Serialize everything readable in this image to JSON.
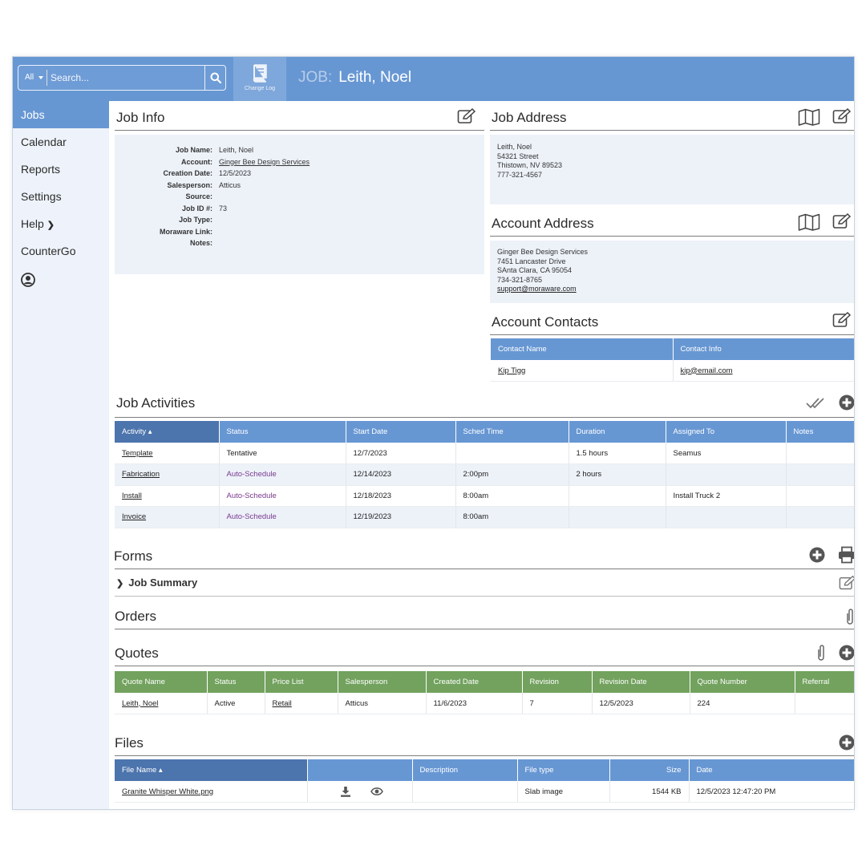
{
  "header": {
    "search_scope": "All",
    "search_placeholder": "Search...",
    "change_log_label": "Change Log",
    "title_prefix": "JOB:",
    "title": "Leith, Noel"
  },
  "sidebar": {
    "items": [
      {
        "label": "Jobs"
      },
      {
        "label": "Calendar"
      },
      {
        "label": "Reports"
      },
      {
        "label": "Settings"
      },
      {
        "label": "Help"
      },
      {
        "label": "CounterGo"
      }
    ]
  },
  "job_info": {
    "title": "Job Info",
    "fields": [
      {
        "label": "Job Name:",
        "value": "Leith, Noel"
      },
      {
        "label": "Account:",
        "value": "Ginger Bee Design Services"
      },
      {
        "label": "Creation Date:",
        "value": "12/5/2023"
      },
      {
        "label": "Salesperson:",
        "value": "Atticus"
      },
      {
        "label": "Source:",
        "value": ""
      },
      {
        "label": "Job ID #:",
        "value": "73"
      },
      {
        "label": "Job Type:",
        "value": ""
      },
      {
        "label": "Moraware Link:",
        "value": ""
      },
      {
        "label": "Notes:",
        "value": ""
      }
    ]
  },
  "job_address": {
    "title": "Job Address",
    "lines": [
      "Leith, Noel",
      "54321 Street",
      "Thistown, NV 89523",
      "777-321-4567"
    ]
  },
  "account_address": {
    "title": "Account Address",
    "lines": [
      "Ginger Bee Design Services",
      "7451 Lancaster Drive",
      "SAnta Clara, CA 95054",
      "734-321-8765"
    ],
    "email": "support@moraware.com"
  },
  "account_contacts": {
    "title": "Account Contacts",
    "columns": [
      "Contact Name",
      "Contact Info"
    ],
    "rows": [
      [
        "Kip Tigg",
        "kip@email.com"
      ]
    ]
  },
  "job_activities": {
    "title": "Job Activities",
    "columns": [
      "Activity ▴",
      "Status",
      "Start Date",
      "Sched Time",
      "Duration",
      "Assigned To",
      "Notes"
    ],
    "rows": [
      [
        "Template",
        "Tentative",
        "12/7/2023",
        "",
        "1.5 hours",
        "Seamus",
        ""
      ],
      [
        "Fabrication",
        "Auto-Schedule",
        "12/14/2023",
        "2:00pm",
        "2 hours",
        "",
        ""
      ],
      [
        "Install",
        "Auto-Schedule",
        "12/18/2023",
        "8:00am",
        "",
        "Install Truck 2",
        ""
      ],
      [
        "Invoice",
        "Auto-Schedule",
        "12/19/2023",
        "8:00am",
        "",
        "",
        ""
      ]
    ]
  },
  "forms": {
    "title": "Forms",
    "items": [
      {
        "label": "Job Summary"
      }
    ]
  },
  "orders": {
    "title": "Orders"
  },
  "quotes": {
    "title": "Quotes",
    "columns": [
      "Quote Name",
      "Status",
      "Price List",
      "Salesperson",
      "Created Date",
      "Revision",
      "Revision Date",
      "Quote Number",
      "Referral"
    ],
    "rows": [
      [
        "Leith, Noel",
        "Active",
        "Retail",
        "Atticus",
        "11/6/2023",
        "7",
        "12/5/2023",
        "224",
        ""
      ]
    ]
  },
  "files": {
    "title": "Files",
    "columns": [
      "File Name ▴",
      "",
      "Description",
      "File type",
      "Size",
      "Date"
    ],
    "rows": [
      [
        "Granite Whisper White.png",
        "",
        "",
        "Slab image",
        "1544 KB",
        "12/5/2023 12:47:20 PM"
      ]
    ]
  },
  "colors": {
    "header_blue": "#6797d3",
    "sorted_column": "#4c74ad",
    "quotes_green": "#72a25e",
    "panel": "#edf2f9",
    "auto_schedule": "#7a3a8f"
  }
}
